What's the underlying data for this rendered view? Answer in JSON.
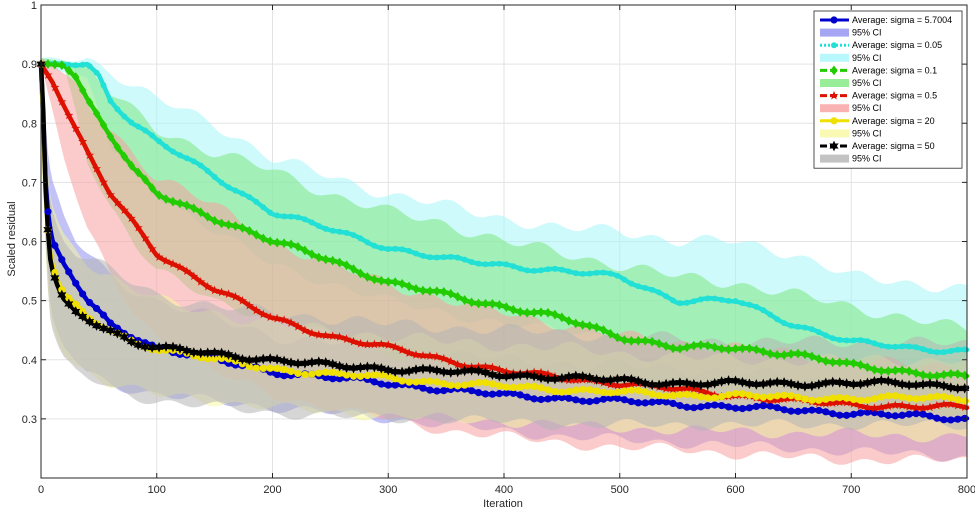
{
  "chart_data": {
    "type": "line",
    "title": "",
    "xlabel": "Iteration",
    "ylabel": "Scaled residual",
    "xlim": [
      0,
      800
    ],
    "ylim": [
      0.2,
      1.0
    ],
    "grid": true,
    "legend_position": "top-right",
    "x_ticks": [
      0,
      100,
      200,
      300,
      400,
      500,
      600,
      700,
      800
    ],
    "y_ticks": [
      0.3,
      0.4,
      0.5,
      0.6,
      0.7,
      0.8,
      0.9,
      1
    ],
    "y_tick_labels": [
      "0.3",
      "0.4",
      "0.5",
      "0.6",
      "0.7",
      "0.8",
      "0.9",
      "1"
    ],
    "series": [
      {
        "name": "Average: sigma = 5.7004",
        "ci_name": "95% CI",
        "color": "#0000cc",
        "ci_color": "#8f8ff0",
        "marker": "circle",
        "x": [
          0,
          2,
          4,
          6,
          8,
          10,
          15,
          20,
          30,
          40,
          50,
          60,
          80,
          100,
          150,
          200,
          250,
          300,
          350,
          400,
          450,
          500,
          550,
          600,
          650,
          700,
          750,
          800
        ],
        "y": [
          0.9,
          0.8,
          0.7,
          0.65,
          0.62,
          0.6,
          0.58,
          0.56,
          0.53,
          0.5,
          0.48,
          0.46,
          0.44,
          0.42,
          0.4,
          0.38,
          0.37,
          0.36,
          0.35,
          0.34,
          0.335,
          0.33,
          0.325,
          0.32,
          0.315,
          0.31,
          0.305,
          0.3
        ],
        "ci_low": [
          0.88,
          0.74,
          0.6,
          0.55,
          0.5,
          0.47,
          0.44,
          0.42,
          0.4,
          0.38,
          0.37,
          0.36,
          0.35,
          0.34,
          0.33,
          0.32,
          0.31,
          0.3,
          0.29,
          0.28,
          0.27,
          0.265,
          0.26,
          0.255,
          0.25,
          0.245,
          0.24,
          0.235
        ],
        "ci_high": [
          0.91,
          0.86,
          0.8,
          0.75,
          0.72,
          0.7,
          0.67,
          0.64,
          0.6,
          0.58,
          0.56,
          0.54,
          0.52,
          0.5,
          0.47,
          0.44,
          0.43,
          0.42,
          0.41,
          0.4,
          0.395,
          0.39,
          0.385,
          0.38,
          0.37,
          0.36,
          0.355,
          0.35
        ]
      },
      {
        "name": "Average: sigma = 0.05",
        "ci_name": "95% CI",
        "color": "#22e0d6",
        "ci_color": "#a6f5fa",
        "marker": "dot",
        "x": [
          0,
          20,
          40,
          50,
          60,
          80,
          100,
          150,
          200,
          250,
          300,
          350,
          400,
          450,
          500,
          550,
          600,
          650,
          700,
          750,
          800
        ],
        "y": [
          0.9,
          0.9,
          0.9,
          0.88,
          0.84,
          0.8,
          0.77,
          0.71,
          0.65,
          0.62,
          0.59,
          0.57,
          0.56,
          0.55,
          0.54,
          0.5,
          0.5,
          0.46,
          0.43,
          0.42,
          0.415
        ],
        "ci_low": [
          0.9,
          0.89,
          0.87,
          0.82,
          0.76,
          0.72,
          0.68,
          0.62,
          0.56,
          0.53,
          0.5,
          0.48,
          0.46,
          0.45,
          0.44,
          0.42,
          0.42,
          0.4,
          0.38,
          0.37,
          0.36
        ],
        "ci_high": [
          0.91,
          0.91,
          0.91,
          0.9,
          0.89,
          0.86,
          0.84,
          0.8,
          0.74,
          0.71,
          0.68,
          0.66,
          0.64,
          0.62,
          0.62,
          0.6,
          0.6,
          0.58,
          0.54,
          0.53,
          0.52
        ]
      },
      {
        "name": "Average: sigma = 0.1",
        "ci_name": "95% CI",
        "color": "#22cc00",
        "ci_color": "#7ee87e",
        "marker": "diamond",
        "x": [
          0,
          20,
          30,
          40,
          60,
          80,
          100,
          150,
          200,
          250,
          300,
          350,
          400,
          450,
          500,
          550,
          600,
          650,
          700,
          750,
          800
        ],
        "y": [
          0.9,
          0.9,
          0.88,
          0.84,
          0.78,
          0.72,
          0.68,
          0.64,
          0.6,
          0.57,
          0.53,
          0.51,
          0.49,
          0.47,
          0.44,
          0.42,
          0.42,
          0.41,
          0.39,
          0.38,
          0.37
        ],
        "ci_low": [
          0.9,
          0.89,
          0.82,
          0.74,
          0.66,
          0.6,
          0.55,
          0.5,
          0.47,
          0.44,
          0.41,
          0.39,
          0.37,
          0.36,
          0.35,
          0.34,
          0.34,
          0.33,
          0.32,
          0.31,
          0.31
        ],
        "ci_high": [
          0.91,
          0.91,
          0.9,
          0.89,
          0.85,
          0.82,
          0.79,
          0.75,
          0.72,
          0.68,
          0.65,
          0.63,
          0.6,
          0.58,
          0.56,
          0.54,
          0.53,
          0.51,
          0.49,
          0.47,
          0.45
        ]
      },
      {
        "name": "Average: sigma = 0.5",
        "ci_name": "95% CI",
        "color": "#dd1100",
        "ci_color": "#f8a0a0",
        "marker": "star",
        "x": [
          0,
          10,
          20,
          30,
          40,
          60,
          80,
          100,
          150,
          200,
          250,
          300,
          350,
          400,
          450,
          500,
          550,
          600,
          650,
          700,
          750,
          800
        ],
        "y": [
          0.9,
          0.87,
          0.83,
          0.79,
          0.75,
          0.68,
          0.63,
          0.58,
          0.52,
          0.47,
          0.44,
          0.42,
          0.4,
          0.38,
          0.37,
          0.36,
          0.35,
          0.34,
          0.33,
          0.325,
          0.32,
          0.32
        ],
        "ci_low": [
          0.9,
          0.82,
          0.74,
          0.68,
          0.62,
          0.54,
          0.48,
          0.44,
          0.38,
          0.34,
          0.32,
          0.3,
          0.28,
          0.27,
          0.26,
          0.25,
          0.25,
          0.24,
          0.235,
          0.23,
          0.23,
          0.23
        ],
        "ci_high": [
          0.91,
          0.9,
          0.88,
          0.86,
          0.83,
          0.79,
          0.75,
          0.71,
          0.66,
          0.6,
          0.56,
          0.53,
          0.5,
          0.48,
          0.46,
          0.44,
          0.43,
          0.42,
          0.41,
          0.4,
          0.39,
          0.39
        ]
      },
      {
        "name": "Average: sigma = 20",
        "ci_name": "95% CI",
        "color": "#f0e000",
        "ci_color": "#f8f8a0",
        "marker": "circle",
        "x": [
          0,
          2,
          4,
          6,
          8,
          10,
          15,
          20,
          30,
          40,
          50,
          60,
          80,
          100,
          150,
          200,
          250,
          300,
          350,
          400,
          450,
          500,
          550,
          600,
          650,
          700,
          750,
          800
        ],
        "y": [
          0.9,
          0.8,
          0.68,
          0.62,
          0.58,
          0.56,
          0.53,
          0.51,
          0.49,
          0.47,
          0.46,
          0.45,
          0.43,
          0.42,
          0.4,
          0.385,
          0.375,
          0.37,
          0.36,
          0.355,
          0.35,
          0.345,
          0.34,
          0.34,
          0.335,
          0.335,
          0.335,
          0.335
        ],
        "ci_low": [
          0.88,
          0.72,
          0.58,
          0.52,
          0.48,
          0.46,
          0.43,
          0.41,
          0.39,
          0.38,
          0.37,
          0.36,
          0.35,
          0.34,
          0.33,
          0.32,
          0.31,
          0.305,
          0.3,
          0.295,
          0.29,
          0.285,
          0.28,
          0.28,
          0.275,
          0.275,
          0.27,
          0.27
        ],
        "ci_high": [
          0.91,
          0.88,
          0.78,
          0.72,
          0.68,
          0.66,
          0.63,
          0.61,
          0.59,
          0.57,
          0.55,
          0.54,
          0.52,
          0.5,
          0.48,
          0.46,
          0.45,
          0.44,
          0.43,
          0.425,
          0.42,
          0.41,
          0.405,
          0.4,
          0.4,
          0.4,
          0.4,
          0.4
        ]
      },
      {
        "name": "Average: sigma = 50",
        "ci_name": "95% CI",
        "color": "#000000",
        "ci_color": "#b4b4b4",
        "marker": "hexagram",
        "x": [
          0,
          2,
          4,
          6,
          8,
          10,
          15,
          20,
          30,
          40,
          50,
          60,
          80,
          100,
          150,
          200,
          250,
          300,
          350,
          400,
          450,
          500,
          550,
          600,
          650,
          700,
          750,
          800
        ],
        "y": [
          0.9,
          0.82,
          0.69,
          0.62,
          0.57,
          0.55,
          0.52,
          0.5,
          0.48,
          0.47,
          0.46,
          0.45,
          0.43,
          0.42,
          0.41,
          0.4,
          0.39,
          0.385,
          0.38,
          0.375,
          0.37,
          0.365,
          0.36,
          0.36,
          0.36,
          0.36,
          0.36,
          0.355
        ],
        "ci_low": [
          0.88,
          0.74,
          0.6,
          0.52,
          0.47,
          0.45,
          0.42,
          0.4,
          0.38,
          0.37,
          0.36,
          0.35,
          0.34,
          0.33,
          0.32,
          0.31,
          0.305,
          0.3,
          0.3,
          0.295,
          0.29,
          0.29,
          0.29,
          0.29,
          0.29,
          0.29,
          0.29,
          0.29
        ],
        "ci_high": [
          0.91,
          0.9,
          0.8,
          0.72,
          0.67,
          0.65,
          0.62,
          0.6,
          0.58,
          0.57,
          0.56,
          0.55,
          0.53,
          0.51,
          0.49,
          0.48,
          0.47,
          0.46,
          0.455,
          0.45,
          0.445,
          0.44,
          0.435,
          0.43,
          0.43,
          0.43,
          0.43,
          0.425
        ]
      }
    ]
  }
}
